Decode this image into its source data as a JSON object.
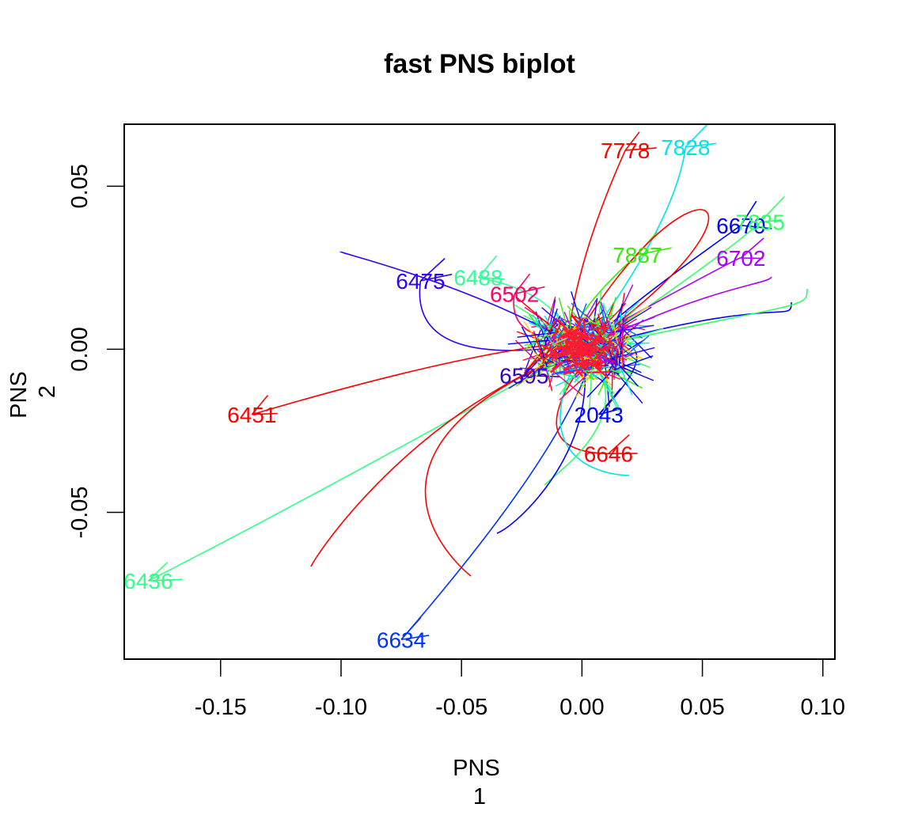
{
  "chart_data": {
    "type": "scatter",
    "title": "fast PNS biplot",
    "xlabel": "PNS\n1",
    "ylabel": "PNS\n2",
    "xlim": [
      -0.19,
      0.105
    ],
    "ylim": [
      -0.095,
      0.069
    ],
    "x_ticks": [
      -0.15,
      -0.1,
      -0.05,
      0.0,
      0.05,
      0.1
    ],
    "x_tick_labels": [
      "-0.15",
      "-0.10",
      "-0.05",
      "0.00",
      "0.05",
      "0.10"
    ],
    "y_ticks": [
      -0.05,
      0.0,
      0.05
    ],
    "y_tick_labels": [
      "-0.05",
      "0.00",
      "0.05"
    ],
    "grid": false,
    "legend": "none",
    "labeled_points": [
      {
        "label": "7778",
        "x": 0.018,
        "y": 0.061,
        "color": "#ff0000"
      },
      {
        "label": "7828",
        "x": 0.043,
        "y": 0.062,
        "color": "#00e5e5"
      },
      {
        "label": "6670",
        "x": 0.066,
        "y": 0.038,
        "color": "#0000ff"
      },
      {
        "label": "7835",
        "x": 0.074,
        "y": 0.039,
        "color": "#33ff66"
      },
      {
        "label": "7887",
        "x": 0.023,
        "y": 0.029,
        "color": "#33ee00"
      },
      {
        "label": "6702",
        "x": 0.066,
        "y": 0.028,
        "color": "#aa00ff"
      },
      {
        "label": "6475",
        "x": -0.067,
        "y": 0.021,
        "color": "#3300ff"
      },
      {
        "label": "6488",
        "x": -0.043,
        "y": 0.022,
        "color": "#33ff99"
      },
      {
        "label": "6502",
        "x": -0.028,
        "y": 0.017,
        "color": "#ff0066"
      },
      {
        "label": "6451",
        "x": -0.137,
        "y": -0.02,
        "color": "#ff0000"
      },
      {
        "label": "6436",
        "x": -0.18,
        "y": -0.071,
        "color": "#33ff88"
      },
      {
        "label": "6634",
        "x": -0.075,
        "y": -0.089,
        "color": "#0033ff"
      },
      {
        "label": "6646",
        "x": 0.011,
        "y": -0.032,
        "color": "#ff0000"
      },
      {
        "label": "2043",
        "x": 0.007,
        "y": -0.02,
        "color": "#0000ff"
      },
      {
        "label": "6595",
        "x": -0.024,
        "y": -0.008,
        "color": "#3300cc"
      }
    ]
  }
}
